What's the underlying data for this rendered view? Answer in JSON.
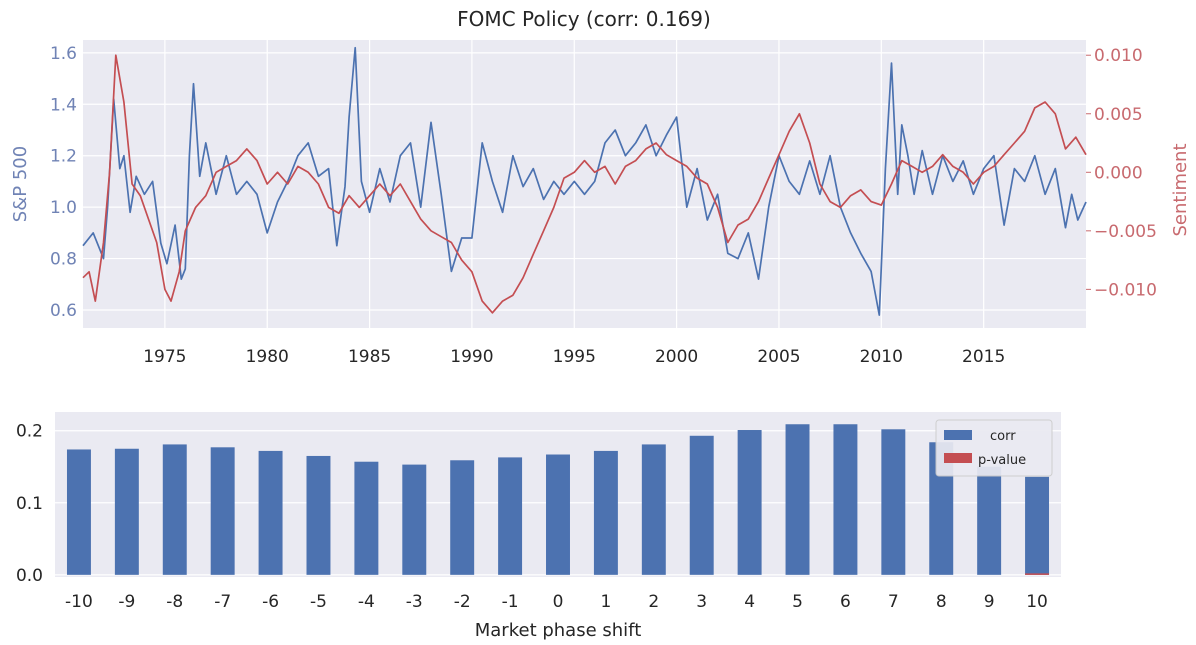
{
  "chart_data": [
    {
      "type": "line",
      "title": "FOMC Policy (corr: 0.169)",
      "xlabel": "",
      "ylabel": "S&P 500",
      "y2label": "Sentiment",
      "xlim": [
        1971.0,
        2020.0
      ],
      "ylim": [
        0.53,
        1.65
      ],
      "y2lim": [
        -0.0133,
        0.0113
      ],
      "xticks": [
        1975,
        1980,
        1985,
        1990,
        1995,
        2000,
        2005,
        2010,
        2015
      ],
      "yticks": [
        "0.6",
        "0.8",
        "1.0",
        "1.2",
        "1.4",
        "1.6"
      ],
      "y2ticks": [
        "−0.010",
        "−0.005",
        "0.000",
        "0.005",
        "0.010"
      ],
      "grid": true,
      "colors": {
        "sp500": "#4c72b0",
        "sentiment": "#c44e52",
        "axes_bg": "#eaeaf2",
        "grid": "#ffffff"
      },
      "series": [
        {
          "name": "S&P 500",
          "axis": "left",
          "x": [
            1971.0,
            1971.5,
            1972.0,
            1972.2,
            1972.5,
            1972.8,
            1973.0,
            1973.3,
            1973.6,
            1974.0,
            1974.4,
            1974.8,
            1975.1,
            1975.5,
            1975.8,
            1976.0,
            1976.2,
            1976.4,
            1976.7,
            1977.0,
            1977.5,
            1978.0,
            1978.5,
            1979.0,
            1979.5,
            1980.0,
            1980.5,
            1981.0,
            1981.5,
            1982.0,
            1982.5,
            1983.0,
            1983.4,
            1983.8,
            1984.0,
            1984.3,
            1984.6,
            1985.0,
            1985.5,
            1986.0,
            1986.5,
            1987.0,
            1987.5,
            1988.0,
            1988.5,
            1989.0,
            1989.5,
            1990.0,
            1990.5,
            1991.0,
            1991.5,
            1992.0,
            1992.5,
            1993.0,
            1993.5,
            1994.0,
            1994.5,
            1995.0,
            1995.5,
            1996.0,
            1996.5,
            1997.0,
            1997.5,
            1998.0,
            1998.5,
            1999.0,
            1999.5,
            2000.0,
            2000.5,
            2001.0,
            2001.5,
            2002.0,
            2002.5,
            2003.0,
            2003.5,
            2004.0,
            2004.5,
            2005.0,
            2005.5,
            2006.0,
            2006.5,
            2007.0,
            2007.5,
            2008.0,
            2008.5,
            2009.0,
            2009.5,
            2009.9,
            2010.2,
            2010.5,
            2010.8,
            2011.0,
            2011.3,
            2011.6,
            2012.0,
            2012.5,
            2013.0,
            2013.5,
            2014.0,
            2014.5,
            2015.0,
            2015.5,
            2016.0,
            2016.5,
            2017.0,
            2017.5,
            2018.0,
            2018.5,
            2019.0,
            2019.3,
            2019.6,
            2020.0
          ],
          "y": [
            0.85,
            0.9,
            0.8,
            1.0,
            1.42,
            1.15,
            1.2,
            0.98,
            1.12,
            1.05,
            1.1,
            0.86,
            0.78,
            0.93,
            0.72,
            0.76,
            1.2,
            1.48,
            1.12,
            1.25,
            1.05,
            1.2,
            1.05,
            1.1,
            1.05,
            0.9,
            1.02,
            1.1,
            1.2,
            1.25,
            1.12,
            1.15,
            0.85,
            1.08,
            1.35,
            1.62,
            1.1,
            0.98,
            1.15,
            1.02,
            1.2,
            1.25,
            1.0,
            1.33,
            1.05,
            0.75,
            0.88,
            0.88,
            1.25,
            1.1,
            0.98,
            1.2,
            1.08,
            1.15,
            1.03,
            1.1,
            1.05,
            1.1,
            1.05,
            1.1,
            1.25,
            1.3,
            1.2,
            1.25,
            1.32,
            1.2,
            1.28,
            1.35,
            1.0,
            1.15,
            0.95,
            1.05,
            0.82,
            0.8,
            0.9,
            0.72,
            1.0,
            1.2,
            1.1,
            1.05,
            1.18,
            1.05,
            1.2,
            1.0,
            0.9,
            0.82,
            0.75,
            0.58,
            1.15,
            1.56,
            1.05,
            1.32,
            1.2,
            1.05,
            1.22,
            1.05,
            1.2,
            1.1,
            1.18,
            1.05,
            1.15,
            1.2,
            0.93,
            1.15,
            1.1,
            1.2,
            1.05,
            1.15,
            0.92,
            1.05,
            0.95,
            1.02
          ]
        },
        {
          "name": "Sentiment",
          "axis": "right",
          "x": [
            1971.0,
            1971.3,
            1971.6,
            1972.0,
            1972.3,
            1972.6,
            1973.0,
            1973.4,
            1973.8,
            1974.2,
            1974.6,
            1975.0,
            1975.3,
            1975.7,
            1976.0,
            1976.5,
            1977.0,
            1977.5,
            1978.0,
            1978.5,
            1979.0,
            1979.5,
            1980.0,
            1980.5,
            1981.0,
            1981.5,
            1982.0,
            1982.5,
            1983.0,
            1983.5,
            1984.0,
            1984.5,
            1985.0,
            1985.5,
            1986.0,
            1986.5,
            1987.0,
            1987.5,
            1988.0,
            1988.5,
            1989.0,
            1989.5,
            1990.0,
            1990.5,
            1991.0,
            1991.5,
            1992.0,
            1992.5,
            1993.0,
            1993.5,
            1994.0,
            1994.5,
            1995.0,
            1995.5,
            1996.0,
            1996.5,
            1997.0,
            1997.5,
            1998.0,
            1998.5,
            1999.0,
            1999.5,
            2000.0,
            2000.5,
            2001.0,
            2001.5,
            2002.0,
            2002.5,
            2003.0,
            2003.5,
            2004.0,
            2004.5,
            2005.0,
            2005.5,
            2006.0,
            2006.5,
            2007.0,
            2007.5,
            2008.0,
            2008.5,
            2009.0,
            2009.5,
            2010.0,
            2010.5,
            2011.0,
            2011.5,
            2012.0,
            2012.5,
            2013.0,
            2013.5,
            2014.0,
            2014.5,
            2015.0,
            2015.5,
            2016.0,
            2016.5,
            2017.0,
            2017.5,
            2018.0,
            2018.5,
            2019.0,
            2019.5,
            2020.0
          ],
          "y": [
            -0.009,
            -0.0085,
            -0.011,
            -0.006,
            0.0,
            0.01,
            0.006,
            -0.001,
            -0.002,
            -0.004,
            -0.006,
            -0.01,
            -0.011,
            -0.0085,
            -0.005,
            -0.003,
            -0.002,
            0.0,
            0.0005,
            0.001,
            0.002,
            0.001,
            -0.001,
            0.0,
            -0.001,
            0.0005,
            0.0,
            -0.001,
            -0.003,
            -0.0035,
            -0.002,
            -0.003,
            -0.002,
            -0.001,
            -0.002,
            -0.001,
            -0.0025,
            -0.004,
            -0.005,
            -0.0055,
            -0.006,
            -0.0075,
            -0.0085,
            -0.011,
            -0.012,
            -0.011,
            -0.0105,
            -0.009,
            -0.007,
            -0.005,
            -0.003,
            -0.0005,
            0.0,
            0.001,
            0.0,
            0.0005,
            -0.001,
            0.0005,
            0.001,
            0.002,
            0.0025,
            0.0015,
            0.001,
            0.0005,
            -0.0005,
            -0.001,
            -0.003,
            -0.006,
            -0.0045,
            -0.004,
            -0.0025,
            -0.0005,
            0.0015,
            0.0035,
            0.005,
            0.0025,
            -0.001,
            -0.0025,
            -0.003,
            -0.002,
            -0.0015,
            -0.0025,
            -0.0028,
            -0.001,
            0.001,
            0.0005,
            0.0,
            0.0005,
            0.0015,
            0.0005,
            0.0,
            -0.001,
            0.0,
            0.0005,
            0.0015,
            0.0025,
            0.0035,
            0.0055,
            0.006,
            0.005,
            0.002,
            0.003,
            0.0015
          ]
        }
      ]
    },
    {
      "type": "bar",
      "title": "",
      "xlabel": "Market phase shift",
      "ylabel": "",
      "ylim": [
        -0.003,
        0.226
      ],
      "yticks": [
        "0.0",
        "0.1",
        "0.2"
      ],
      "legend": "top-right",
      "grid": true,
      "categories": [
        "-10",
        "-9",
        "-8",
        "-7",
        "-6",
        "-5",
        "-4",
        "-3",
        "-2",
        "-1",
        "0",
        "1",
        "2",
        "3",
        "4",
        "5",
        "6",
        "7",
        "8",
        "9",
        "10"
      ],
      "series": [
        {
          "name": "corr",
          "color": "#4c72b0",
          "values": [
            0.174,
            0.175,
            0.181,
            0.177,
            0.172,
            0.165,
            0.157,
            0.153,
            0.159,
            0.163,
            0.167,
            0.172,
            0.181,
            0.193,
            0.201,
            0.209,
            0.209,
            0.202,
            0.184,
            0.15,
            0.136
          ]
        },
        {
          "name": "p-value",
          "color": "#c44e52",
          "values": [
            0.0,
            0.0,
            0.0,
            0.0,
            0.0,
            0.0,
            0.0,
            0.0,
            0.0,
            0.0,
            0.0,
            0.0,
            0.0,
            0.0,
            0.0,
            0.0,
            0.0,
            0.0,
            0.0,
            0.0,
            0.002
          ]
        }
      ]
    }
  ]
}
